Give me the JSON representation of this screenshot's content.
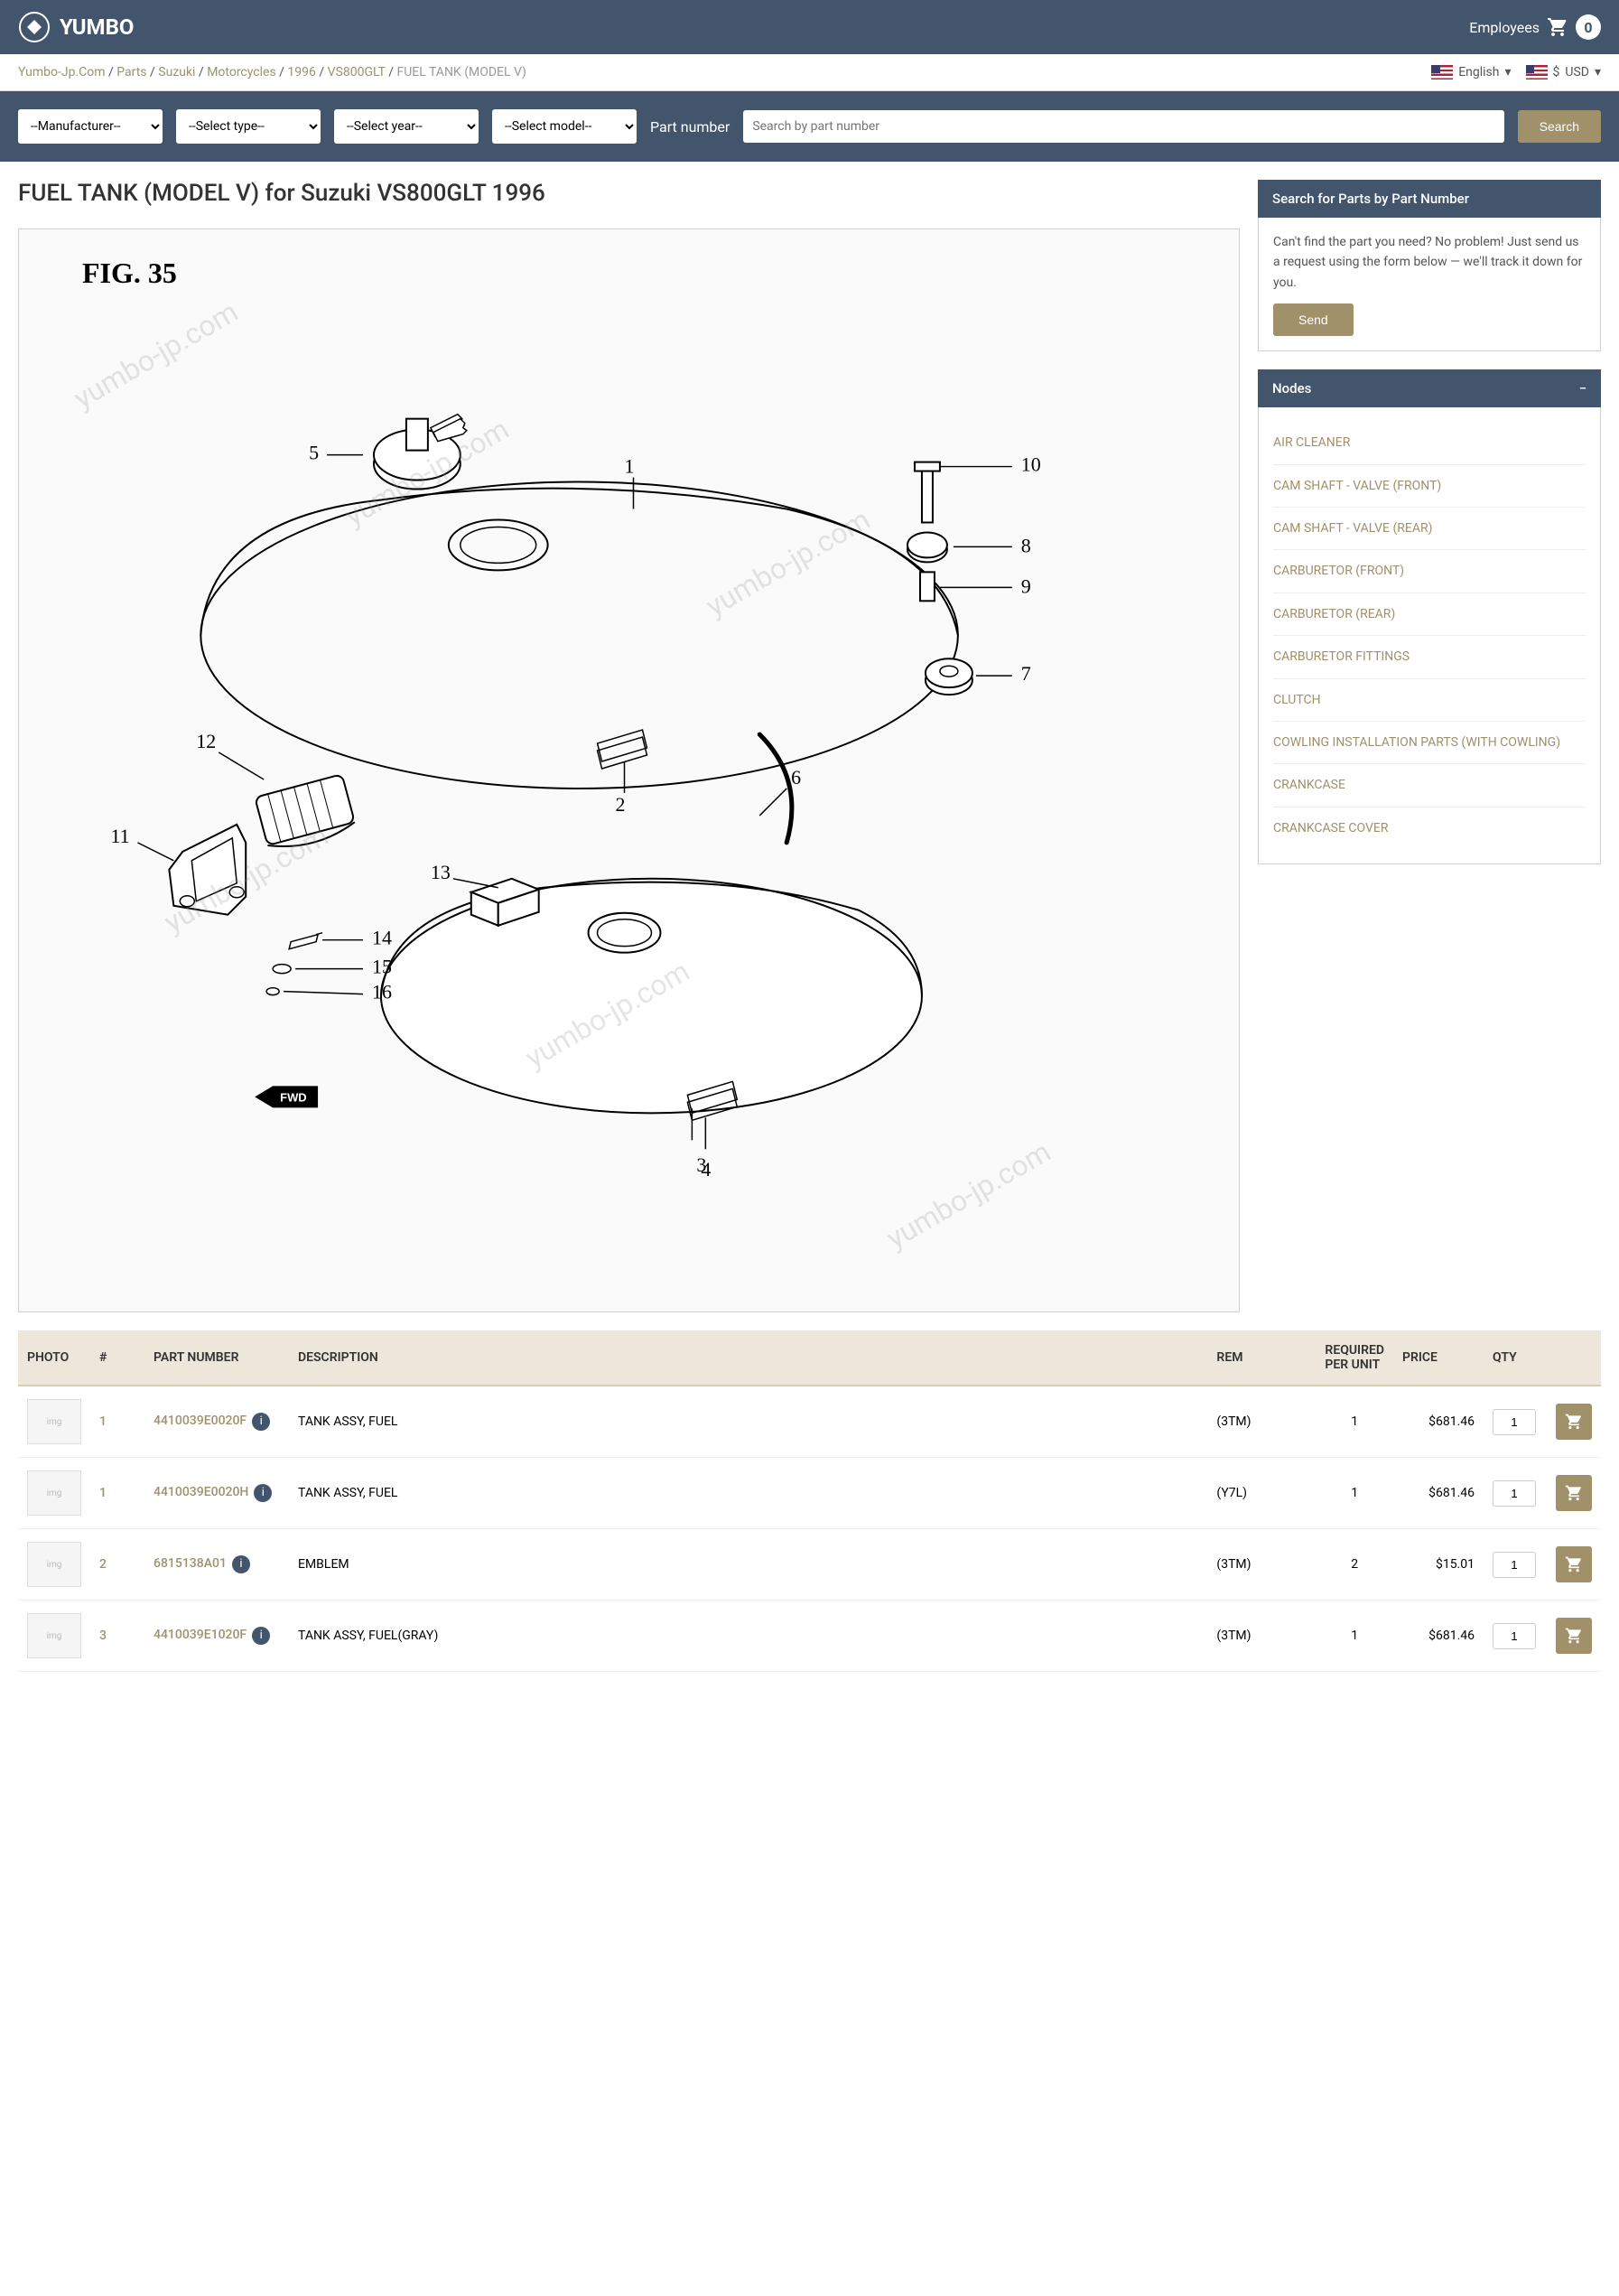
{
  "header": {
    "logo_text": "YUMBO",
    "cart_count": "0",
    "employees_label": "Employees"
  },
  "breadcrumb": {
    "items": [
      "Yumbo-Jp.Com",
      "Parts",
      "Suzuki",
      "Motorcycles",
      "1996",
      "VS800GLT"
    ],
    "active": "FUEL TANK (MODEL V)"
  },
  "lang": {
    "label": "English"
  },
  "currency": {
    "label": "USD",
    "symbol": "$"
  },
  "search": {
    "manufacturer_placeholder": "--Manufacturer--",
    "type_placeholder": "--Select type--",
    "year_placeholder": "--Select year--",
    "model_placeholder": "--Select model--",
    "partnum_label": "Part number",
    "partnum_placeholder": "Search by part number",
    "button": "Search"
  },
  "page": {
    "title": "FUEL TANK (MODEL V) for Suzuki VS800GLT 1996"
  },
  "diagram": {
    "fig_label": "FIG. 35",
    "watermark": "yumbo-jp.com",
    "callouts": [
      "1",
      "2",
      "3",
      "4",
      "5",
      "6",
      "7",
      "8",
      "9",
      "10",
      "11",
      "12",
      "13",
      "14",
      "15",
      "16"
    ],
    "fwd_label": "FWD"
  },
  "sidebar": {
    "request": {
      "title": "Search for Parts by Part Number",
      "body": "Can't find the part you need? No problem! Just send us a request using the form below — we'll track it down for you.",
      "button": "Send"
    },
    "nodes": {
      "title": "Nodes",
      "collapse": "−",
      "items": [
        "AIR CLEANER",
        "CAM SHAFT - VALVE (FRONT)",
        "CAM SHAFT - VALVE (REAR)",
        "CARBURETOR (FRONT)",
        "CARBURETOR (REAR)",
        "CARBURETOR FITTINGS",
        "CLUTCH",
        "COWLING INSTALLATION PARTS (WITH COWLING)",
        "CRANKCASE",
        "CRANKCASE COVER"
      ]
    }
  },
  "table": {
    "headers": {
      "photo": "PHOTO",
      "ref": "#",
      "partnum": "PART NUMBER",
      "desc": "DESCRIPTION",
      "rem": "REM",
      "req": "REQUIRED PER UNIT",
      "price": "PRICE",
      "qty": "QTY",
      "add": ""
    },
    "rows": [
      {
        "ref": "1",
        "partnum": "4410039E0020F",
        "desc": "TANK ASSY, FUEL",
        "rem": "(3TM)",
        "req": "1",
        "price": "$681.46",
        "qty": "1"
      },
      {
        "ref": "1",
        "partnum": "4410039E0020H",
        "desc": "TANK ASSY, FUEL",
        "rem": "(Y7L)",
        "req": "1",
        "price": "$681.46",
        "qty": "1"
      },
      {
        "ref": "2",
        "partnum": "6815138A01",
        "desc": "EMBLEM",
        "rem": "(3TM)",
        "req": "2",
        "price": "$15.01",
        "qty": "1"
      },
      {
        "ref": "3",
        "partnum": "4410039E1020F",
        "desc": "TANK ASSY, FUEL(GRAY)",
        "rem": "(3TM)",
        "req": "1",
        "price": "$681.46",
        "qty": "1"
      }
    ]
  }
}
